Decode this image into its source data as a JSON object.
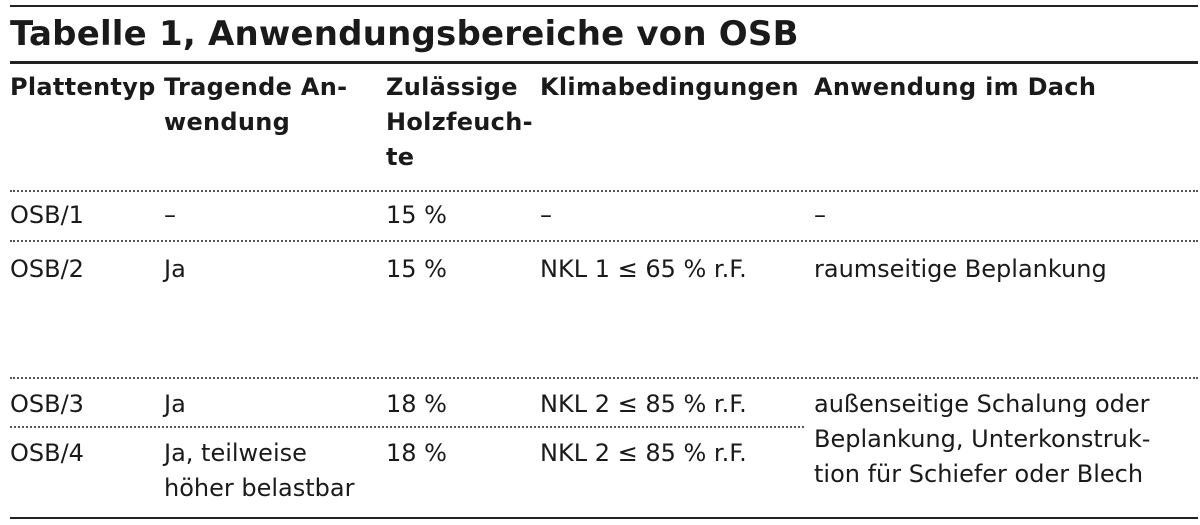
{
  "title": "Tabelle 1, Anwendungsbereiche von OSB",
  "headers": {
    "plattentyp": "Plattentyp",
    "tragende": "Tragende An-\nwendung",
    "holzfeuchte": "Zulässige\nHolzfeuch-\nte",
    "klima": "Klimabedingungen",
    "dach": "Anwendung im Dach"
  },
  "rows": [
    {
      "plattentyp": "OSB/1",
      "tragende": "–",
      "holzfeuchte": "15 %",
      "klima": "–",
      "dach": "–"
    },
    {
      "plattentyp": "OSB/2",
      "tragende": "Ja",
      "holzfeuchte": "15 %",
      "klima": "NKL 1 ≤ 65 % r.F.",
      "dach": "raumseitige Beplankung"
    },
    {
      "plattentyp": "OSB/3",
      "tragende": "Ja",
      "holzfeuchte": "18 %",
      "klima": "NKL 2 ≤ 85 % r.F.",
      "dach": "außenseitige Schalung oder\nBeplankung, Unterkonstruk-\ntion für Schiefer oder Blech"
    },
    {
      "plattentyp": "OSB/4",
      "tragende": "Ja, teilweise\nhöher belastbar",
      "holzfeuchte": "18 %",
      "klima": "NKL 2 ≤ 85 % r.F."
    }
  ]
}
